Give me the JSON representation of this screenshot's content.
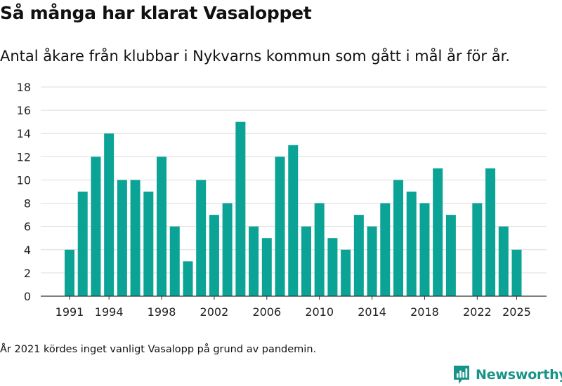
{
  "title": "Så många har klarat Vasaloppet",
  "subtitle": "Antal åkare från klubbar i Nykvarns kommun som gått i mål år för år.",
  "note": "År 2021 kördes inget vanligt Vasalopp på grund av pandemin.",
  "brand": {
    "name": "Newsworthy",
    "icon": "newsworthy-logo-icon"
  },
  "colors": {
    "bar": "#0aa396",
    "grid": "#dddddd",
    "axis": "#333333",
    "brand": "#179489"
  },
  "chart_data": {
    "type": "bar",
    "title": "Så många har klarat Vasaloppet",
    "xlabel": "",
    "ylabel": "",
    "ylim": [
      0,
      18
    ],
    "yticks": [
      0,
      2,
      4,
      6,
      8,
      10,
      12,
      14,
      16,
      18
    ],
    "xticks": [
      1991,
      1994,
      1998,
      2002,
      2006,
      2010,
      2014,
      2018,
      2022,
      2025
    ],
    "grid": true,
    "categories": [
      1991,
      1992,
      1993,
      1994,
      1995,
      1996,
      1997,
      1998,
      1999,
      2000,
      2001,
      2002,
      2003,
      2004,
      2005,
      2006,
      2007,
      2008,
      2009,
      2010,
      2011,
      2012,
      2013,
      2014,
      2015,
      2016,
      2017,
      2018,
      2019,
      2020,
      2021,
      2022,
      2023,
      2024,
      2025
    ],
    "values": [
      4,
      9,
      12,
      14,
      10,
      10,
      9,
      12,
      6,
      3,
      10,
      7,
      8,
      15,
      6,
      5,
      12,
      13,
      6,
      8,
      5,
      4,
      7,
      6,
      8,
      10,
      9,
      8,
      11,
      7,
      null,
      8,
      11,
      6,
      4
    ]
  }
}
